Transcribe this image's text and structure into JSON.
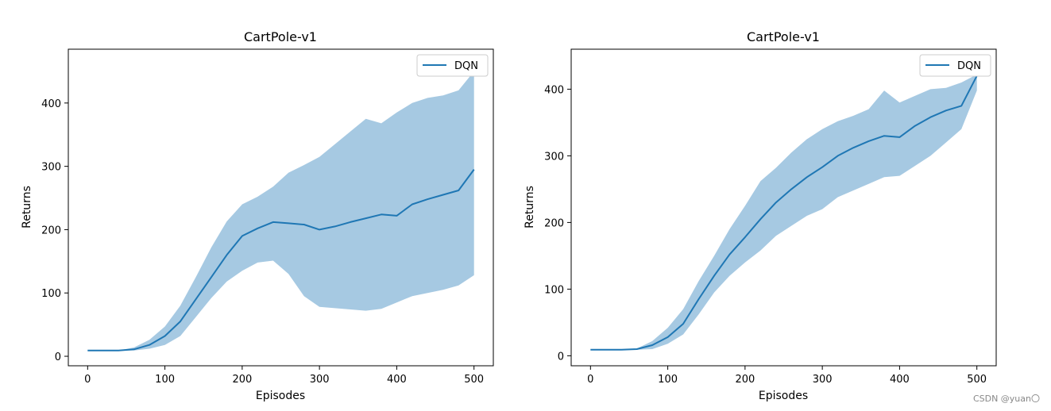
{
  "colors": {
    "line": "#1f77b4",
    "band": "#a6c9e2"
  },
  "watermark": "CSDN @yuan〇",
  "chart_data": [
    {
      "type": "line",
      "title": "CartPole-v1",
      "xlabel": "Episodes",
      "ylabel": "Returns",
      "xlim": [
        -25,
        525
      ],
      "ylim": [
        -15,
        485
      ],
      "xticks": [
        0,
        100,
        200,
        300,
        400,
        500
      ],
      "yticks": [
        0,
        100,
        200,
        300,
        400
      ],
      "legend": {
        "label": "DQN",
        "position": "top-right"
      },
      "series": [
        {
          "name": "DQN",
          "x": [
            0,
            20,
            40,
            60,
            80,
            100,
            120,
            140,
            160,
            180,
            200,
            220,
            240,
            260,
            280,
            300,
            320,
            340,
            360,
            380,
            400,
            420,
            440,
            460,
            480,
            500
          ],
          "y": [
            9,
            9,
            9,
            11,
            18,
            32,
            55,
            90,
            125,
            160,
            190,
            202,
            212,
            210,
            208,
            200,
            205,
            212,
            218,
            224,
            222,
            240,
            248,
            255,
            262,
            295
          ],
          "lower": [
            9,
            9,
            9,
            9,
            12,
            18,
            32,
            62,
            92,
            118,
            135,
            148,
            151,
            130,
            95,
            78,
            76,
            74,
            72,
            75,
            85,
            95,
            100,
            105,
            112,
            128
          ],
          "upper": [
            9,
            9,
            9,
            14,
            26,
            47,
            80,
            125,
            172,
            213,
            240,
            252,
            268,
            290,
            302,
            315,
            335,
            355,
            375,
            368,
            385,
            400,
            408,
            412,
            420,
            450
          ]
        }
      ]
    },
    {
      "type": "line",
      "title": "CartPole-v1",
      "xlabel": "Episodes",
      "ylabel": "Returns",
      "xlim": [
        -25,
        525
      ],
      "ylim": [
        -15,
        460
      ],
      "xticks": [
        0,
        100,
        200,
        300,
        400,
        500
      ],
      "yticks": [
        0,
        100,
        200,
        300,
        400
      ],
      "legend": {
        "label": "DQN",
        "position": "top-right"
      },
      "series": [
        {
          "name": "DQN",
          "x": [
            0,
            20,
            40,
            60,
            80,
            100,
            120,
            140,
            160,
            180,
            200,
            220,
            240,
            260,
            280,
            300,
            320,
            340,
            360,
            380,
            400,
            420,
            440,
            460,
            480,
            500
          ],
          "y": [
            9,
            9,
            9,
            10,
            16,
            28,
            48,
            85,
            120,
            152,
            178,
            205,
            230,
            250,
            268,
            283,
            300,
            312,
            322,
            330,
            328,
            345,
            358,
            368,
            375,
            420
          ],
          "lower": [
            9,
            9,
            9,
            9,
            10,
            18,
            32,
            62,
            95,
            120,
            140,
            158,
            180,
            195,
            210,
            220,
            238,
            248,
            258,
            268,
            270,
            285,
            300,
            320,
            340,
            398
          ],
          "upper": [
            9,
            9,
            9,
            11,
            22,
            42,
            70,
            112,
            150,
            190,
            225,
            262,
            282,
            305,
            325,
            340,
            352,
            360,
            370,
            398,
            380,
            390,
            400,
            402,
            410,
            422
          ]
        }
      ]
    }
  ]
}
